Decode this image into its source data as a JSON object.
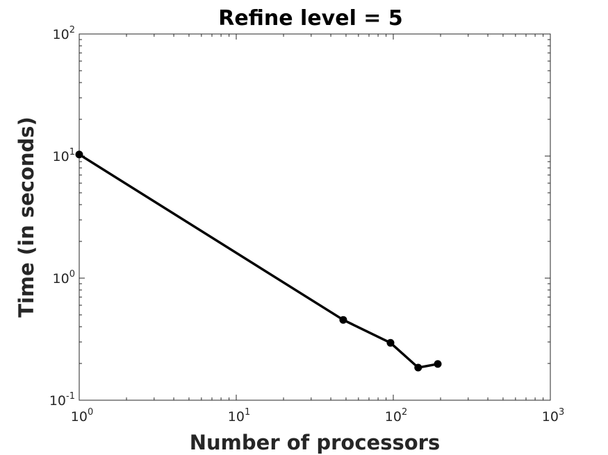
{
  "chart_data": {
    "type": "line",
    "title": "Refine level = 5",
    "xlabel": "Number of processors",
    "ylabel": "Time (in seconds)",
    "xscale": "log",
    "yscale": "log",
    "xlim": [
      1,
      1000
    ],
    "ylim": [
      0.1,
      100
    ],
    "grid": false,
    "legend": "none",
    "x_ticks": [
      {
        "value": 1,
        "base": "10",
        "exp": "0"
      },
      {
        "value": 10,
        "base": "10",
        "exp": "1"
      },
      {
        "value": 100,
        "base": "10",
        "exp": "2"
      },
      {
        "value": 1000,
        "base": "10",
        "exp": "3"
      }
    ],
    "y_ticks": [
      {
        "value": 0.1,
        "base": "10",
        "exp": "-1"
      },
      {
        "value": 1,
        "base": "10",
        "exp": "0"
      },
      {
        "value": 10,
        "base": "10",
        "exp": "1"
      },
      {
        "value": 100,
        "base": "10",
        "exp": "2"
      }
    ],
    "series": [
      {
        "color": "#000000",
        "marker": "circle",
        "x": [
          1,
          48,
          96,
          144,
          192
        ],
        "y": [
          10.3,
          0.455,
          0.295,
          0.185,
          0.198
        ]
      }
    ]
  }
}
